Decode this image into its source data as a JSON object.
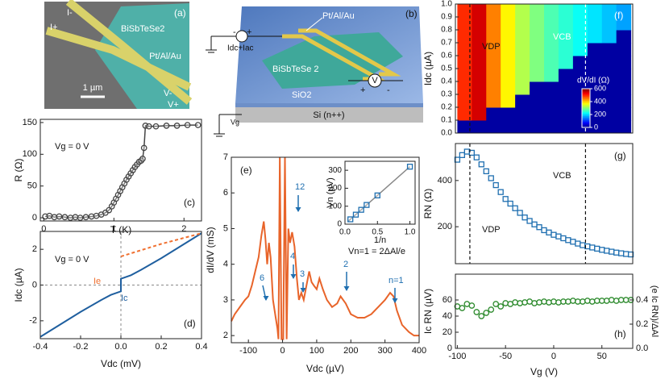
{
  "panels": {
    "a": {
      "label": "(a)",
      "flake": "BiSbTeSe2",
      "electrode": "Pt/Al/Au",
      "scale": "1 µm",
      "leads": [
        "I-",
        "I+",
        "V-",
        "V+"
      ]
    },
    "b": {
      "label": "(b)",
      "electrode": "Pt/Al/Au",
      "source": "Idc+Iac",
      "flake": "BiSbTeSe 2",
      "oxide": "SiO2",
      "substrate": "Si (n++)",
      "gate": "Vg",
      "meter": "V",
      "plus": "+",
      "minus": "-"
    }
  },
  "chart_data": [
    {
      "type": "scatter",
      "panel_label": "(c)",
      "xlabel": "T (K)",
      "ylabel": "R (Ω)",
      "annotations": [
        "Vg = 0 V"
      ],
      "xlim": [
        -0.05,
        2.25
      ],
      "ylim": [
        -5,
        155
      ],
      "xticks": [
        0,
        1,
        2
      ],
      "yticks": [
        0,
        50,
        100,
        150
      ],
      "x": [
        0.02,
        0.08,
        0.15,
        0.22,
        0.3,
        0.38,
        0.45,
        0.52,
        0.6,
        0.68,
        0.75,
        0.82,
        0.88,
        0.93,
        0.97,
        1.0,
        1.03,
        1.06,
        1.09,
        1.12,
        1.15,
        1.18,
        1.21,
        1.24,
        1.27,
        1.3,
        1.33,
        1.36,
        1.39,
        1.41,
        1.43,
        1.45,
        1.5,
        1.6,
        1.75,
        1.9,
        2.05,
        2.2
      ],
      "series": [
        {
          "color": "#444444",
          "marker": "circle",
          "connect": true,
          "values": [
            2,
            3,
            1,
            2,
            1,
            0,
            1,
            0,
            1,
            2,
            3,
            5,
            8,
            12,
            18,
            24,
            30,
            36,
            42,
            48,
            54,
            60,
            65,
            70,
            75,
            80,
            84,
            88,
            90,
            93,
            110,
            145,
            144,
            144,
            145,
            145,
            146,
            146
          ]
        }
      ]
    },
    {
      "type": "line",
      "panel_label": "(d)",
      "xlabel": "Vdc (mV)",
      "ylabel": "Idc (µA)",
      "annotations": [
        "Vg = 0 V",
        "Ie",
        "Ic"
      ],
      "xlim": [
        -0.4,
        0.4
      ],
      "ylim": [
        -3,
        3
      ],
      "xticks": [
        -0.4,
        -0.2,
        {
          "value": 0,
          "label": "0.0"
        },
        0.2,
        0.4
      ],
      "yticks": [
        -2,
        0,
        2
      ],
      "zero_lines": true,
      "series": [
        {
          "color": "#1f5f9f",
          "x": [
            -0.4,
            -0.3,
            -0.2,
            -0.1,
            -0.05,
            0,
            0,
            0.05,
            0.1,
            0.2,
            0.3,
            0.4
          ],
          "values": [
            -2.9,
            -2.2,
            -1.5,
            -0.85,
            -0.55,
            -0.35,
            0.35,
            0.55,
            0.85,
            1.5,
            2.2,
            2.9
          ]
        },
        {
          "color": "#f07030",
          "dash": true,
          "x": [
            0,
            0.1,
            0.2,
            0.3,
            0.4
          ],
          "values": [
            1.6,
            1.95,
            2.3,
            2.6,
            2.9
          ]
        }
      ]
    },
    {
      "type": "line",
      "panel_label": "(e)",
      "xlabel": "Vdc (µV)",
      "ylabel": "dI/dV (mS)",
      "annotations": [
        "12",
        "6",
        "4",
        "3",
        "2",
        "n=1",
        "Vn=1 = 2ΔAl/e"
      ],
      "xlim": [
        -150,
        400
      ],
      "ylim": [
        1.8,
        7
      ],
      "xticks": [
        -100,
        0,
        100,
        200,
        300,
        400
      ],
      "yticks": [
        2,
        3,
        4,
        5,
        6,
        7
      ],
      "x": [
        -150,
        -140,
        -125,
        -110,
        -100,
        -90,
        -80,
        -70,
        -62,
        -55,
        -50,
        -45,
        -40,
        -35,
        -28,
        -20,
        -15,
        -12,
        -8,
        -3,
        2,
        7,
        12,
        17,
        22,
        28,
        35,
        42,
        48,
        55,
        62,
        70,
        78,
        85,
        92,
        100,
        108,
        118,
        130,
        145,
        160,
        170,
        185,
        200,
        220,
        240,
        260,
        280,
        300,
        315,
        325,
        335,
        350,
        370,
        385,
        400
      ],
      "series": [
        {
          "color": "#e8642a",
          "values": [
            2.4,
            2.6,
            2.8,
            3.0,
            3.1,
            3.4,
            3.8,
            4.2,
            4.8,
            5.2,
            4.7,
            4.0,
            4.6,
            4.2,
            3.0,
            2.5,
            2.2,
            1.9,
            7.0,
            1.9,
            1.9,
            7.0,
            1.9,
            5.0,
            4.6,
            4.9,
            4.5,
            3.6,
            3.0,
            3.2,
            3.0,
            3.4,
            3.8,
            3.5,
            3.4,
            3.3,
            3.6,
            3.3,
            3.0,
            2.8,
            2.9,
            3.1,
            2.9,
            2.6,
            2.5,
            2.5,
            2.6,
            2.8,
            3.0,
            3.2,
            3.1,
            2.7,
            2.3,
            2.1,
            2.0,
            2.0
          ]
        }
      ]
    },
    {
      "type": "scatter",
      "xlabel": "1/n",
      "ylabel": "Vn (µV)",
      "xlim": [
        0,
        1.08
      ],
      "ylim": [
        0,
        350
      ],
      "xticks": [
        {
          "value": 0,
          "label": "0.0"
        },
        0.5,
        {
          "value": 1,
          "label": "1.0"
        }
      ],
      "yticks": [
        0,
        100,
        200,
        300
      ],
      "series": [
        {
          "color": "#888888",
          "marker": "none",
          "connect": true,
          "x": [
            0.04,
            1.0
          ],
          "values": [
            13,
            320
          ]
        },
        {
          "color": "#1f6fb0",
          "marker": "square",
          "x": [
            1,
            0.5,
            0.333,
            0.25,
            0.167,
            0.083
          ],
          "values": [
            320,
            160,
            107,
            80,
            53,
            27
          ]
        }
      ]
    },
    {
      "type": "heatmap",
      "panel_label": "(f)",
      "ylabel": "Idc (µA)",
      "annotations": [
        "VDP",
        "VCB"
      ],
      "xlim": [
        -102,
        82
      ],
      "ylim": [
        0,
        1
      ],
      "yticks": [
        {
          "value": 0,
          "label": "0.0"
        },
        0.1,
        0.2,
        0.3,
        0.4,
        0.5,
        0.6,
        0.7,
        0.8,
        0.9,
        {
          "value": 1,
          "label": "1.0"
        }
      ],
      "x": [
        -92.5,
        -77.5,
        -62.5,
        -47.5,
        -32.5,
        -17.5,
        -2.5,
        12.5,
        27.5,
        42.5,
        57.5,
        72.5
      ],
      "y": [
        0.05,
        0.15,
        0.25,
        0.35,
        0.45,
        0.55,
        0.65,
        0.75,
        0.85,
        0.95
      ],
      "z": [
        [
          20,
          20,
          20,
          20,
          20,
          20,
          20,
          20,
          20,
          20,
          20,
          20
        ],
        [
          500,
          550,
          20,
          20,
          20,
          20,
          20,
          20,
          20,
          20,
          20,
          20
        ],
        [
          500,
          550,
          450,
          380,
          20,
          20,
          20,
          20,
          20,
          20,
          20,
          20
        ],
        [
          500,
          550,
          450,
          380,
          330,
          20,
          20,
          20,
          20,
          20,
          20,
          20
        ],
        [
          500,
          550,
          450,
          380,
          330,
          300,
          270,
          20,
          20,
          20,
          20,
          20
        ],
        [
          500,
          550,
          450,
          380,
          330,
          300,
          270,
          250,
          20,
          20,
          20,
          20
        ],
        [
          500,
          550,
          450,
          380,
          330,
          300,
          270,
          250,
          230,
          20,
          20,
          20
        ],
        [
          500,
          550,
          450,
          380,
          330,
          300,
          270,
          250,
          230,
          210,
          190,
          20
        ],
        [
          500,
          550,
          450,
          380,
          330,
          300,
          270,
          250,
          230,
          210,
          190,
          170
        ],
        [
          500,
          550,
          450,
          380,
          330,
          300,
          270,
          250,
          230,
          210,
          190,
          170
        ]
      ],
      "zlim": [
        0,
        600
      ],
      "colorbar_label": "dV/dI (Ω)",
      "colorbar_ticks": [
        0,
        200,
        400,
        600
      ],
      "vlines": [
        -87,
        33
      ]
    },
    {
      "type": "scatter",
      "panel_label": "(g)",
      "ylabel": "RN (Ω)",
      "annotations": [
        "VCB",
        "VDP"
      ],
      "xlim": [
        -102,
        82
      ],
      "ylim": [
        40,
        560
      ],
      "yticks": [
        200,
        400
      ],
      "vlines": [
        -87,
        33
      ],
      "x": [
        -100,
        -95,
        -90,
        -85,
        -80,
        -75,
        -70,
        -65,
        -60,
        -55,
        -50,
        -45,
        -40,
        -35,
        -30,
        -25,
        -20,
        -15,
        -10,
        -5,
        0,
        5,
        10,
        15,
        20,
        25,
        30,
        35,
        40,
        45,
        50,
        55,
        60,
        65,
        70,
        75,
        80
      ],
      "series": [
        {
          "color": "#1f6fb0",
          "marker": "square",
          "values": [
            490,
            510,
            525,
            520,
            500,
            470,
            440,
            410,
            380,
            350,
            320,
            300,
            280,
            260,
            240,
            225,
            210,
            198,
            185,
            175,
            165,
            158,
            150,
            142,
            135,
            127,
            120,
            115,
            110,
            105,
            100,
            96,
            92,
            88,
            85,
            82,
            80
          ]
        }
      ]
    },
    {
      "type": "scatter",
      "panel_label": "(h)",
      "xlabel": "Vg (V)",
      "ylabel": "Ic RN (µV)",
      "y2label": "(e Ic RN)/ΔAl",
      "xlim": [
        -102,
        82
      ],
      "ylim": [
        0,
        92
      ],
      "yticks": [
        0,
        20,
        40,
        60
      ],
      "y2lim": [
        0,
        0.613
      ],
      "y2ticks": [
        {
          "value": 0,
          "label": "0.0"
        },
        0.2,
        0.4
      ],
      "xticks": [
        -100,
        -50,
        0,
        50
      ],
      "x": [
        -100,
        -95,
        -90,
        -85,
        -80,
        -75,
        -70,
        -65,
        -60,
        -55,
        -50,
        -45,
        -40,
        -35,
        -30,
        -25,
        -20,
        -15,
        -10,
        -5,
        0,
        5,
        10,
        15,
        20,
        25,
        30,
        35,
        40,
        45,
        50,
        55,
        60,
        65,
        70,
        75,
        80
      ],
      "series": [
        {
          "color": "#2e8b2e",
          "marker": "circle",
          "values": [
            52,
            50,
            55,
            53,
            45,
            40,
            44,
            48,
            55,
            52,
            56,
            55,
            57,
            56,
            57,
            58,
            56,
            57,
            58,
            57,
            58,
            57,
            58,
            58,
            59,
            58,
            58,
            59,
            58,
            59,
            59,
            59,
            60,
            59,
            60,
            60,
            60
          ]
        }
      ]
    }
  ]
}
